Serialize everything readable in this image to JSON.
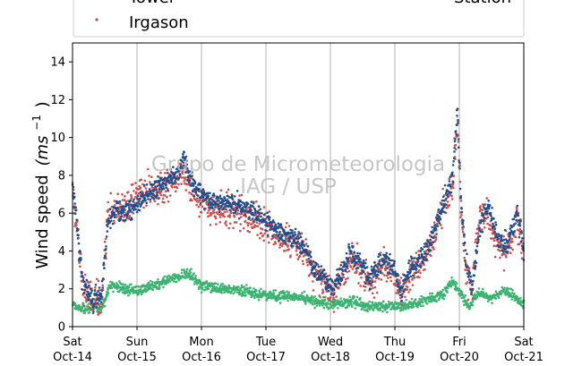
{
  "chart_data": {
    "type": "scatter",
    "title": "",
    "xlabel": "",
    "ylabel": "Wind speed",
    "ylabel_math": "(ms",
    "ylabel_sup": "−1",
    "ylabel_close": ")",
    "xlim": [
      0,
      7
    ],
    "ylim": [
      0,
      15
    ],
    "yticks": [
      0,
      2,
      4,
      6,
      8,
      10,
      12,
      14
    ],
    "xticks": [
      {
        "x": 0,
        "day": "Sat",
        "date": "Oct-14"
      },
      {
        "x": 1,
        "day": "Sun",
        "date": "Oct-15"
      },
      {
        "x": 2,
        "day": "Mon",
        "date": "Oct-16"
      },
      {
        "x": 3,
        "day": "Tue",
        "date": "Oct-17"
      },
      {
        "x": 4,
        "day": "Wed",
        "date": "Oct-18"
      },
      {
        "x": 5,
        "day": "Thu",
        "date": "Oct-19"
      },
      {
        "x": 6,
        "day": "Fri",
        "date": "Oct-20"
      },
      {
        "x": 7,
        "day": "Sat",
        "date": "Oct-21"
      }
    ],
    "grid": "vertical",
    "legend_placement": "top",
    "legend": [
      {
        "label": "Tower",
        "color": "#1f4e8c"
      },
      {
        "label": "Irgason",
        "color": "#c9504c"
      },
      {
        "label": "Station",
        "color": "#3cb371"
      }
    ],
    "series": [
      {
        "name": "Tower",
        "color": "#1f4e8c",
        "profile": [
          [
            0,
            7.5
          ],
          [
            0.06,
            5.8
          ],
          [
            0.15,
            2.5
          ],
          [
            0.3,
            1.4
          ],
          [
            0.45,
            1.6
          ],
          [
            0.55,
            5.5
          ],
          [
            0.7,
            6.2
          ],
          [
            0.85,
            6.0
          ],
          [
            1.0,
            6.5
          ],
          [
            1.2,
            7.0
          ],
          [
            1.45,
            7.6
          ],
          [
            1.62,
            8.0
          ],
          [
            1.72,
            9.0
          ],
          [
            1.85,
            7.5
          ],
          [
            2.0,
            7.0
          ],
          [
            2.2,
            6.6
          ],
          [
            2.5,
            6.5
          ],
          [
            2.75,
            6.2
          ],
          [
            3.0,
            5.5
          ],
          [
            3.2,
            5.0
          ],
          [
            3.4,
            4.8
          ],
          [
            3.6,
            4.3
          ],
          [
            3.75,
            3.0
          ],
          [
            3.9,
            2.5
          ],
          [
            4.05,
            2.0
          ],
          [
            4.2,
            3.0
          ],
          [
            4.3,
            4.0
          ],
          [
            4.45,
            3.5
          ],
          [
            4.6,
            2.5
          ],
          [
            4.8,
            3.5
          ],
          [
            4.95,
            3.2
          ],
          [
            5.1,
            2.0
          ],
          [
            5.25,
            3.0
          ],
          [
            5.45,
            3.8
          ],
          [
            5.6,
            5.0
          ],
          [
            5.75,
            6.5
          ],
          [
            5.9,
            8.0
          ],
          [
            5.97,
            11.5
          ],
          [
            6.02,
            7.0
          ],
          [
            6.1,
            3.5
          ],
          [
            6.2,
            2.0
          ],
          [
            6.3,
            5.0
          ],
          [
            6.45,
            6.5
          ],
          [
            6.6,
            4.5
          ],
          [
            6.75,
            4.2
          ],
          [
            6.9,
            6.0
          ],
          [
            7.0,
            4.0
          ]
        ],
        "spread": 0.9
      },
      {
        "name": "Irgason",
        "color": "#c9504c",
        "profile": [
          [
            0,
            7.0
          ],
          [
            0.06,
            5.5
          ],
          [
            0.15,
            2.3
          ],
          [
            0.3,
            1.3
          ],
          [
            0.45,
            1.5
          ],
          [
            0.55,
            6.0
          ],
          [
            0.7,
            6.2
          ],
          [
            0.85,
            6.3
          ],
          [
            1.0,
            7.0
          ],
          [
            1.2,
            7.2
          ],
          [
            1.45,
            7.5
          ],
          [
            1.62,
            7.8
          ],
          [
            1.72,
            8.5
          ],
          [
            1.85,
            7.2
          ],
          [
            2.0,
            6.6
          ],
          [
            2.2,
            6.3
          ],
          [
            2.5,
            6.2
          ],
          [
            2.75,
            5.8
          ],
          [
            3.0,
            5.2
          ],
          [
            3.2,
            4.8
          ],
          [
            3.4,
            4.5
          ],
          [
            3.6,
            4.0
          ],
          [
            3.75,
            2.8
          ],
          [
            3.9,
            2.3
          ],
          [
            4.05,
            1.8
          ],
          [
            4.2,
            2.8
          ],
          [
            4.3,
            3.6
          ],
          [
            4.45,
            3.2
          ],
          [
            4.6,
            2.3
          ],
          [
            4.8,
            3.2
          ],
          [
            4.95,
            3.0
          ],
          [
            5.1,
            1.9
          ],
          [
            5.25,
            2.8
          ],
          [
            5.45,
            3.6
          ],
          [
            5.6,
            4.6
          ],
          [
            5.75,
            6.2
          ],
          [
            5.9,
            7.5
          ],
          [
            5.97,
            11.0
          ],
          [
            6.02,
            6.5
          ],
          [
            6.1,
            3.2
          ],
          [
            6.2,
            1.9
          ],
          [
            6.3,
            5.5
          ],
          [
            6.45,
            6.0
          ],
          [
            6.6,
            4.2
          ],
          [
            6.75,
            4.0
          ],
          [
            6.9,
            5.6
          ],
          [
            7.0,
            3.8
          ]
        ],
        "spread": 1.4
      },
      {
        "name": "Station",
        "color": "#3cb371",
        "profile": [
          [
            0,
            1.2
          ],
          [
            0.2,
            0.9
          ],
          [
            0.45,
            1.0
          ],
          [
            0.6,
            2.3
          ],
          [
            0.8,
            2.0
          ],
          [
            1.0,
            1.9
          ],
          [
            1.3,
            2.2
          ],
          [
            1.6,
            2.6
          ],
          [
            1.8,
            2.8
          ],
          [
            2.0,
            2.2
          ],
          [
            2.3,
            2.0
          ],
          [
            2.6,
            1.9
          ],
          [
            3.0,
            1.7
          ],
          [
            3.3,
            1.6
          ],
          [
            3.6,
            1.5
          ],
          [
            3.8,
            1.3
          ],
          [
            4.0,
            1.2
          ],
          [
            4.3,
            1.3
          ],
          [
            4.6,
            1.1
          ],
          [
            4.9,
            1.1
          ],
          [
            5.2,
            1.1
          ],
          [
            5.5,
            1.4
          ],
          [
            5.75,
            1.7
          ],
          [
            5.9,
            2.4
          ],
          [
            6.0,
            1.9
          ],
          [
            6.15,
            1.0
          ],
          [
            6.3,
            1.8
          ],
          [
            6.5,
            1.5
          ],
          [
            6.7,
            1.9
          ],
          [
            6.9,
            1.5
          ],
          [
            7.0,
            1.0
          ]
        ],
        "spread": 0.45
      }
    ]
  },
  "watermark": {
    "line1": "Grupo de Micrometeorologia",
    "line2": "IAG / USP"
  }
}
